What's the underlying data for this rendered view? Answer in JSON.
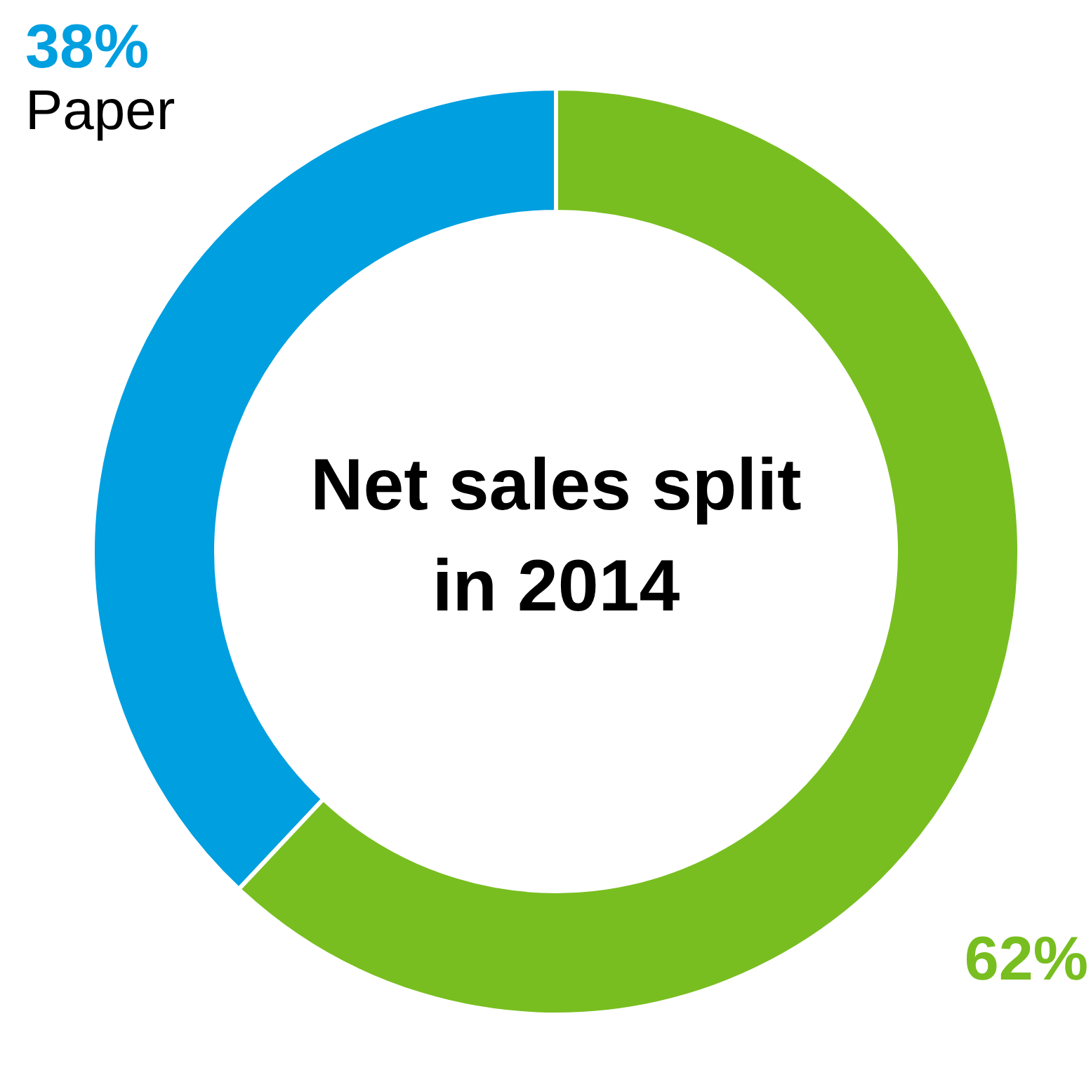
{
  "chart_data": {
    "type": "donut",
    "title": "Net sales split in 2014",
    "categories": [
      "Paper",
      null
    ],
    "values": [
      38,
      62
    ],
    "colors": [
      "#009fdf",
      "#78be20"
    ],
    "value_labels": [
      "38%",
      "62%"
    ]
  }
}
